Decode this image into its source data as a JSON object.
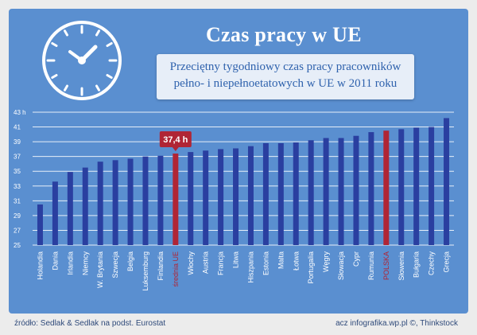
{
  "header": {
    "title": "Czas pracy w UE",
    "subtitle_line1": "Przeciętny tygodniowy czas pracy pracowników",
    "subtitle_line2": "pełno- i niepełnoetatowych w UE w 2011 roku"
  },
  "footer": {
    "source": "źródło: Sedlak & Sedlak na podst. Eurostat",
    "credit": "acz infografika.wp.pl ©, Thinkstock"
  },
  "colors": {
    "background": "#5a8fd0",
    "bar": "#2a3fa0",
    "highlight": "#b02535",
    "grid": "#ffffff"
  },
  "chart_data": {
    "type": "bar",
    "title": "",
    "xlabel": "",
    "ylabel": "",
    "ylim": [
      25,
      43
    ],
    "yticks": [
      25,
      27,
      29,
      31,
      33,
      35,
      37,
      39,
      41,
      43
    ],
    "ytick_labels": [
      "25",
      "27",
      "29",
      "31",
      "33",
      "35",
      "37",
      "39",
      "41",
      "43 h"
    ],
    "categories": [
      "Holandia",
      "Dania",
      "Irlandia",
      "Niemcy",
      "W. Brytania",
      "Szwecja",
      "Belgia",
      "Luksemburg",
      "Finlandia",
      "średnia UE",
      "Włochy",
      "Austria",
      "Francja",
      "Litwa",
      "Hiszpania",
      "Estonia",
      "Malta",
      "Łotwa",
      "Portugalia",
      "Węgry",
      "Słowacja",
      "Cypr",
      "Rumunia",
      "POLSKA",
      "Słowenia",
      "Bułgaria",
      "Czechy",
      "Grecja"
    ],
    "values": [
      30.5,
      33.6,
      34.9,
      35.5,
      36.3,
      36.5,
      36.7,
      37.0,
      37.1,
      37.4,
      37.6,
      37.8,
      38.0,
      38.1,
      38.4,
      38.8,
      38.8,
      38.9,
      39.2,
      39.5,
      39.5,
      39.8,
      40.3,
      40.5,
      40.7,
      40.9,
      41.0,
      42.2
    ],
    "highlight": [
      "średnia UE",
      "POLSKA"
    ],
    "callout": {
      "category": "średnia UE",
      "label": "37,4 h"
    }
  }
}
